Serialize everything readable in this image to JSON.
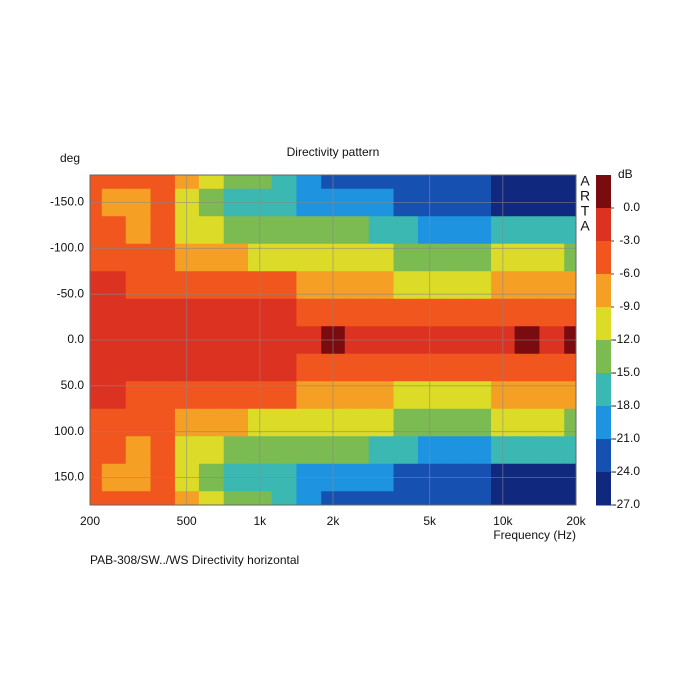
{
  "chart_data": {
    "type": "heatmap",
    "title": "Directivity pattern",
    "ylabel": "deg",
    "xlabel": "Frequency (Hz)",
    "colorbar_label": "dB",
    "watermark": "ARTA",
    "footer": "PAB-308/SW../WS  Directivity horizontal",
    "xscale": "log",
    "grid": true,
    "xlim": [
      200,
      20000
    ],
    "xticks": [
      200,
      500,
      {
        "value": 1000,
        "label": "1k"
      },
      {
        "value": 2000,
        "label": "2k"
      },
      {
        "value": 5000,
        "label": "5k"
      },
      {
        "value": 10000,
        "label": "10k"
      },
      {
        "value": 20000,
        "label": "20k"
      }
    ],
    "ylim": [
      -180,
      180
    ],
    "yticks": [
      {
        "value": -150,
        "label": "-150.0"
      },
      {
        "value": -100,
        "label": "-100.0"
      },
      {
        "value": -50,
        "label": "-50.0"
      },
      {
        "value": 0,
        "label": "0.0"
      },
      {
        "value": 50,
        "label": "50.0"
      },
      {
        "value": 100,
        "label": "100.0"
      },
      {
        "value": 150,
        "label": "150.0"
      }
    ],
    "clim": [
      -27,
      3
    ],
    "cticks": [
      {
        "value": 0,
        "label": "0.0"
      },
      {
        "value": -3,
        "label": "-3.0"
      },
      {
        "value": -6,
        "label": "-6.0"
      },
      {
        "value": -9,
        "label": "-9.0"
      },
      {
        "value": -12,
        "label": "-12.0"
      },
      {
        "value": -15,
        "label": "-15.0"
      },
      {
        "value": -18,
        "label": "-18.0"
      },
      {
        "value": -21,
        "label": "-21.0"
      },
      {
        "value": -24,
        "label": "-24.0"
      },
      {
        "value": -27,
        "label": "-27.0"
      }
    ],
    "colors": [
      "#7a0c10",
      "#dc3222",
      "#f0561e",
      "#f5a024",
      "#dcdc28",
      "#7cba52",
      "#3cb8b2",
      "#1e94e0",
      "#1650b0",
      "#10287e"
    ],
    "x": [
      200,
      250,
      315,
      400,
      500,
      630,
      800,
      1000,
      1250,
      1600,
      2000,
      2500,
      3150,
      4000,
      5000,
      6300,
      8000,
      10000,
      12500,
      16000,
      20000
    ],
    "y": [
      -180,
      -150,
      -120,
      -90,
      -60,
      -30,
      0,
      30,
      60,
      90,
      120,
      150,
      180
    ],
    "z": [
      [
        -4.5,
        -5,
        -5,
        -4.5,
        -8,
        -11,
        -13,
        -13,
        -16,
        -21,
        -22,
        -23,
        -23,
        -22,
        -22,
        -22,
        -23,
        -25,
        -25,
        -25,
        -25
      ],
      [
        -4.5,
        -7,
        -7,
        -5,
        -10,
        -13,
        -16,
        -16,
        -17,
        -19,
        -19,
        -20,
        -21,
        -22,
        -23,
        -24,
        -24,
        -25,
        -25,
        -25,
        -25
      ],
      [
        -4,
        -6,
        -7.5,
        -6,
        -9.5,
        -11,
        -13,
        -14,
        -15,
        -15,
        -14,
        -15,
        -17,
        -18,
        -20,
        -21,
        -20,
        -17,
        -17,
        -18,
        -18
      ],
      [
        -3.5,
        -4,
        -5,
        -5,
        -6.5,
        -8,
        -9,
        -10,
        -10.5,
        -10.5,
        -10,
        -11,
        -11,
        -14,
        -15,
        -14,
        -13,
        -11,
        -11,
        -12,
        -13
      ],
      [
        -2.5,
        -3,
        -3.5,
        -3.5,
        -4,
        -4.5,
        -5,
        -5,
        -6,
        -7,
        -7,
        -7.5,
        -9,
        -10,
        -10,
        -10,
        -10,
        -9,
        -8,
        -9,
        -8
      ],
      [
        -2,
        -2,
        -2.5,
        -2.5,
        -2.5,
        -2.5,
        -3,
        -3,
        -3,
        -3.5,
        -3.5,
        -4,
        -5,
        -5,
        -5,
        -5,
        -5,
        -5,
        -4,
        -5,
        -5
      ],
      [
        -2,
        -2,
        -2,
        -2,
        -2,
        -2,
        -2,
        -1,
        -2,
        -2,
        0.5,
        -2,
        -2,
        -2,
        -2,
        -2,
        -2,
        -1,
        0.5,
        -2,
        0.5
      ],
      [
        -2,
        -2,
        -2.5,
        -2.5,
        -2.5,
        -2.5,
        -3,
        -3,
        -3,
        -3.5,
        -3.5,
        -4,
        -5,
        -5,
        -5,
        -5,
        -5,
        -5,
        -4,
        -5,
        -5
      ],
      [
        -2.5,
        -3,
        -3.5,
        -3.5,
        -4,
        -4.5,
        -5,
        -5,
        -6,
        -7,
        -7,
        -7.5,
        -9,
        -10,
        -10,
        -10,
        -10,
        -9,
        -8,
        -9,
        -8
      ],
      [
        -3.5,
        -4,
        -5,
        -5,
        -6.5,
        -8,
        -9,
        -10,
        -10.5,
        -10.5,
        -10,
        -11,
        -11,
        -14,
        -15,
        -14,
        -13,
        -11,
        -11,
        -12,
        -13
      ],
      [
        -4,
        -6,
        -7.5,
        -6,
        -9.5,
        -11,
        -13,
        -14,
        -15,
        -15,
        -14,
        -15,
        -17,
        -18,
        -20,
        -21,
        -20,
        -17,
        -17,
        -18,
        -18
      ],
      [
        -4.5,
        -7,
        -7,
        -5,
        -10,
        -13,
        -16,
        -16,
        -17,
        -19,
        -19,
        -20,
        -21,
        -22,
        -23,
        -24,
        -24,
        -25,
        -25,
        -25,
        -25
      ],
      [
        -4.5,
        -5,
        -5,
        -4.5,
        -8,
        -11,
        -13,
        -13,
        -16,
        -21,
        -22,
        -23,
        -23,
        -22,
        -22,
        -22,
        -23,
        -25,
        -25,
        -25,
        -25
      ]
    ]
  }
}
